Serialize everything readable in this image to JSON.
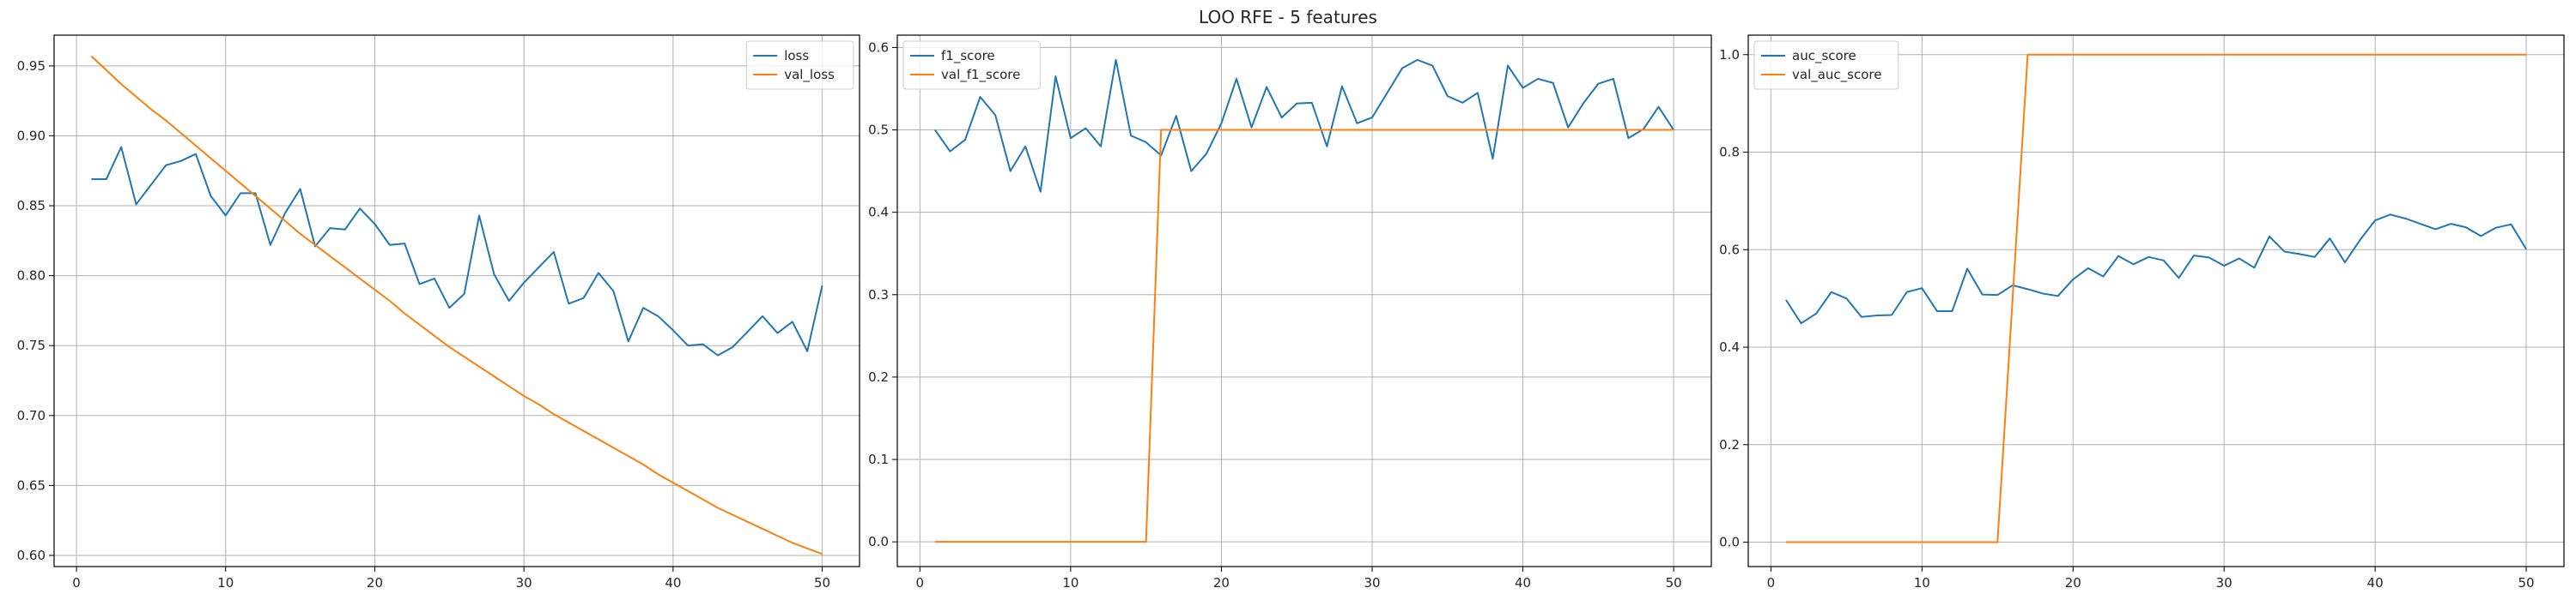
{
  "figure": {
    "suptitle": "LOO RFE - 5 features"
  },
  "colors": {
    "series1": "#1f77b4",
    "series2": "#ff7f0e",
    "grid": "#b0b0b0",
    "axes": "#000000"
  },
  "chart_data": [
    {
      "type": "line",
      "title": "",
      "xlabel": "",
      "ylabel": "",
      "xlim": [
        -1.5,
        52.5
      ],
      "ylim": [
        0.592,
        0.972
      ],
      "xticks": [
        0,
        10,
        20,
        30,
        40,
        50
      ],
      "yticks": [
        0.6,
        0.65,
        0.7,
        0.75,
        0.8,
        0.85,
        0.9,
        0.95
      ],
      "ytick_labels": [
        "0.60",
        "0.65",
        "0.70",
        "0.75",
        "0.80",
        "0.85",
        "0.90",
        "0.95"
      ],
      "grid": true,
      "legend_position": "top-right",
      "x": [
        1,
        2,
        3,
        4,
        5,
        6,
        7,
        8,
        9,
        10,
        11,
        12,
        13,
        14,
        15,
        16,
        17,
        18,
        19,
        20,
        21,
        22,
        23,
        24,
        25,
        26,
        27,
        28,
        29,
        30,
        31,
        32,
        33,
        34,
        35,
        36,
        37,
        38,
        39,
        40,
        41,
        42,
        43,
        44,
        45,
        46,
        47,
        48,
        49,
        50
      ],
      "series": [
        {
          "name": "loss",
          "values": [
            0.869,
            0.869,
            0.892,
            0.851,
            0.865,
            0.879,
            0.882,
            0.887,
            0.857,
            0.843,
            0.859,
            0.859,
            0.822,
            0.845,
            0.862,
            0.821,
            0.834,
            0.833,
            0.848,
            0.837,
            0.822,
            0.823,
            0.794,
            0.798,
            0.777,
            0.787,
            0.843,
            0.801,
            0.782,
            0.795,
            0.806,
            0.817,
            0.78,
            0.784,
            0.802,
            0.789,
            0.753,
            0.777,
            0.771,
            0.761,
            0.75,
            0.751,
            0.743,
            0.749,
            0.76,
            0.771,
            0.759,
            0.767,
            0.746,
            0.793
          ]
        },
        {
          "name": "val_loss",
          "values": [
            0.957,
            0.947,
            0.937,
            0.928,
            0.919,
            0.911,
            0.902,
            0.893,
            0.884,
            0.875,
            0.866,
            0.857,
            0.848,
            0.839,
            0.83,
            0.822,
            0.814,
            0.806,
            0.798,
            0.79,
            0.782,
            0.773,
            0.765,
            0.757,
            0.749,
            0.742,
            0.735,
            0.728,
            0.721,
            0.714,
            0.708,
            0.701,
            0.695,
            0.689,
            0.683,
            0.677,
            0.671,
            0.665,
            0.658,
            0.652,
            0.646,
            0.64,
            0.634,
            0.629,
            0.624,
            0.619,
            0.614,
            0.609,
            0.605,
            0.601
          ]
        }
      ]
    },
    {
      "type": "line",
      "title": "",
      "xlabel": "",
      "ylabel": "",
      "xlim": [
        -1.5,
        52.5
      ],
      "ylim": [
        -0.03,
        0.615
      ],
      "xticks": [
        0,
        10,
        20,
        30,
        40,
        50
      ],
      "yticks": [
        0.0,
        0.1,
        0.2,
        0.3,
        0.4,
        0.5,
        0.6
      ],
      "ytick_labels": [
        "0.0",
        "0.1",
        "0.2",
        "0.3",
        "0.4",
        "0.5",
        "0.6"
      ],
      "grid": true,
      "legend_position": "top-left",
      "x": [
        1,
        2,
        3,
        4,
        5,
        6,
        7,
        8,
        9,
        10,
        11,
        12,
        13,
        14,
        15,
        16,
        17,
        18,
        19,
        20,
        21,
        22,
        23,
        24,
        25,
        26,
        27,
        28,
        29,
        30,
        31,
        32,
        33,
        34,
        35,
        36,
        37,
        38,
        39,
        40,
        41,
        42,
        43,
        44,
        45,
        46,
        47,
        48,
        49,
        50
      ],
      "series": [
        {
          "name": "f1_score",
          "values": [
            0.5,
            0.474,
            0.488,
            0.54,
            0.518,
            0.45,
            0.48,
            0.425,
            0.565,
            0.49,
            0.502,
            0.48,
            0.585,
            0.493,
            0.485,
            0.469,
            0.517,
            0.45,
            0.471,
            0.508,
            0.562,
            0.503,
            0.552,
            0.515,
            0.532,
            0.533,
            0.48,
            0.553,
            0.508,
            0.515,
            0.545,
            0.575,
            0.585,
            0.578,
            0.541,
            0.533,
            0.545,
            0.465,
            0.578,
            0.551,
            0.562,
            0.557,
            0.503,
            0.532,
            0.556,
            0.562,
            0.49,
            0.501,
            0.528,
            0.5
          ]
        },
        {
          "name": "val_f1_score",
          "values": [
            0,
            0,
            0,
            0,
            0,
            0,
            0,
            0,
            0,
            0,
            0,
            0,
            0,
            0,
            0,
            0.5,
            0.5,
            0.5,
            0.5,
            0.5,
            0.5,
            0.5,
            0.5,
            0.5,
            0.5,
            0.5,
            0.5,
            0.5,
            0.5,
            0.5,
            0.5,
            0.5,
            0.5,
            0.5,
            0.5,
            0.5,
            0.5,
            0.5,
            0.5,
            0.5,
            0.5,
            0.5,
            0.5,
            0.5,
            0.5,
            0.5,
            0.5,
            0.5,
            0.5,
            0.5
          ]
        }
      ]
    },
    {
      "type": "line",
      "title": "",
      "xlabel": "",
      "ylabel": "",
      "xlim": [
        -1.5,
        52.5
      ],
      "ylim": [
        -0.05,
        1.04
      ],
      "xticks": [
        0,
        10,
        20,
        30,
        40,
        50
      ],
      "yticks": [
        0.0,
        0.2,
        0.4,
        0.6,
        0.8,
        1.0
      ],
      "ytick_labels": [
        "0.0",
        "0.2",
        "0.4",
        "0.6",
        "0.8",
        "1.0"
      ],
      "grid": true,
      "legend_position": "top-left",
      "x": [
        1,
        2,
        3,
        4,
        5,
        6,
        7,
        8,
        9,
        10,
        11,
        12,
        13,
        14,
        15,
        16,
        17,
        18,
        19,
        20,
        21,
        22,
        23,
        24,
        25,
        26,
        27,
        28,
        29,
        30,
        31,
        32,
        33,
        34,
        35,
        36,
        37,
        38,
        39,
        40,
        41,
        42,
        43,
        44,
        45,
        46,
        47,
        48,
        49,
        50
      ],
      "series": [
        {
          "name": "auc_score",
          "values": [
            0.497,
            0.449,
            0.469,
            0.513,
            0.5,
            0.462,
            0.465,
            0.466,
            0.513,
            0.521,
            0.474,
            0.474,
            0.561,
            0.508,
            0.507,
            0.527,
            0.519,
            0.51,
            0.505,
            0.539,
            0.562,
            0.545,
            0.587,
            0.57,
            0.585,
            0.578,
            0.542,
            0.588,
            0.584,
            0.567,
            0.582,
            0.563,
            0.627,
            0.596,
            0.591,
            0.585,
            0.623,
            0.574,
            0.62,
            0.66,
            0.672,
            0.664,
            0.653,
            0.642,
            0.653,
            0.646,
            0.628,
            0.645,
            0.652,
            0.601
          ]
        },
        {
          "name": "val_auc_score",
          "values": [
            0,
            0,
            0,
            0,
            0,
            0,
            0,
            0,
            0,
            0,
            0,
            0,
            0,
            0,
            0,
            0.5,
            1,
            1,
            1,
            1,
            1,
            1,
            1,
            1,
            1,
            1,
            1,
            1,
            1,
            1,
            1,
            1,
            1,
            1,
            1,
            1,
            1,
            1,
            1,
            1,
            1,
            1,
            1,
            1,
            1,
            1,
            1,
            1,
            1,
            1
          ]
        }
      ]
    }
  ]
}
